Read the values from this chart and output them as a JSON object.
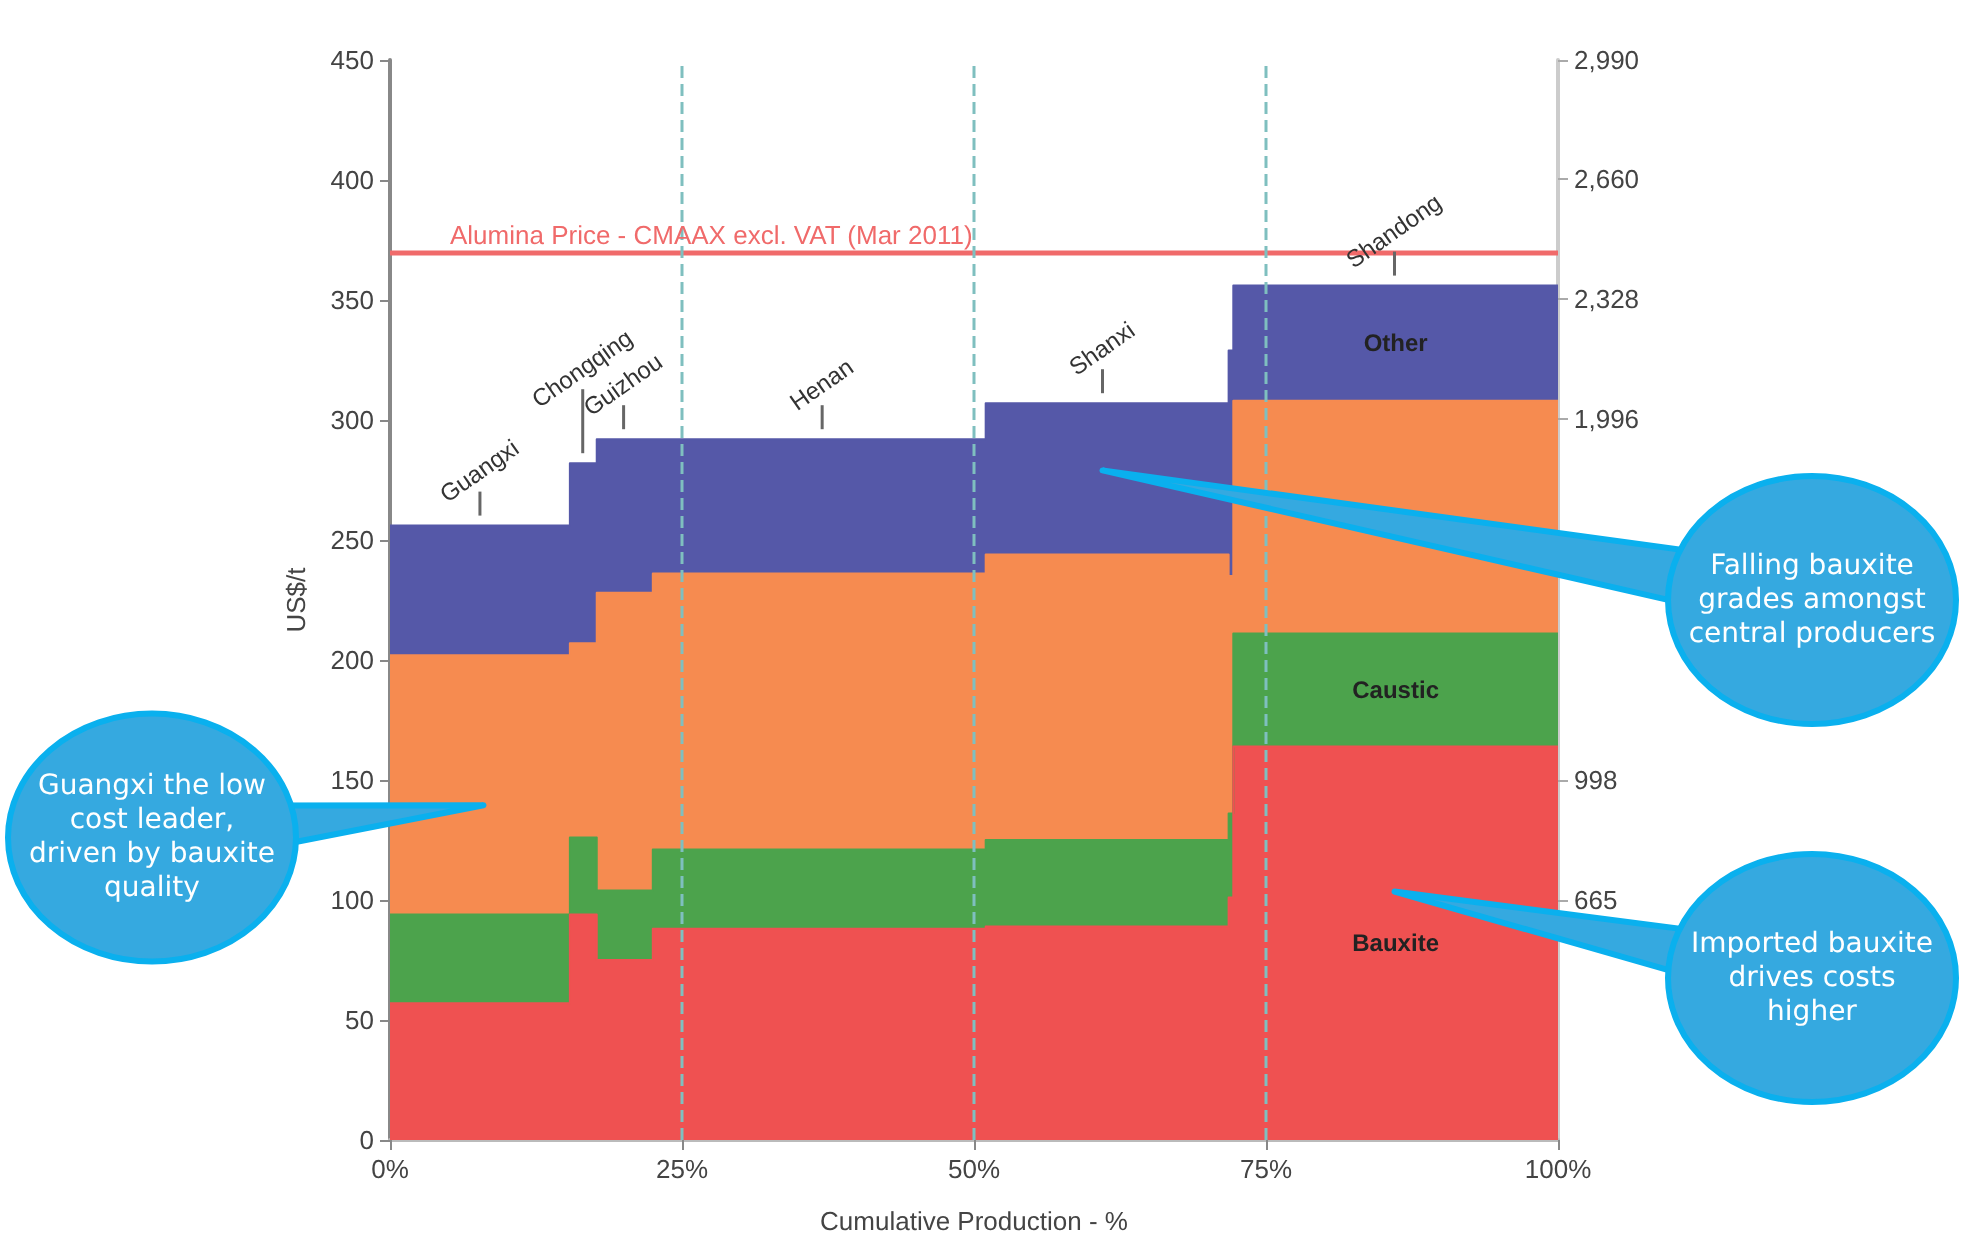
{
  "chart_data": {
    "type": "area",
    "stacked": true,
    "xlabel": "Cumulative Production - %",
    "ylabel": "US$/t",
    "x": [
      0,
      15.4,
      15.4,
      17.7,
      17.7,
      22.5,
      22.5,
      51.0,
      51.0,
      71.8,
      71.8,
      72.2,
      72.2,
      100
    ],
    "series": [
      {
        "name": "Bauxite",
        "color": "#ef5151",
        "values": [
          57,
          57,
          94,
          94,
          75,
          75,
          88,
          88,
          89,
          89,
          101,
          101,
          164,
          164
        ]
      },
      {
        "name": "Caustic",
        "color": "#4ca34c",
        "values": [
          37,
          37,
          32,
          32,
          29,
          29,
          33,
          33,
          36,
          36,
          35,
          35,
          47,
          47
        ]
      },
      {
        "color": "#f68b50",
        "values": [
          108,
          108,
          81,
          81,
          124,
          124,
          115,
          115,
          119,
          119,
          99,
          99,
          97,
          97
        ]
      },
      {
        "name": "Other",
        "color": "#5558a8",
        "values": [
          54,
          54,
          75,
          75,
          64,
          64,
          56,
          56,
          63,
          63,
          94,
          94,
          48,
          48
        ]
      }
    ],
    "xlim": [
      0,
      100
    ],
    "xticks": [
      {
        "value": 0,
        "label": "0%"
      },
      {
        "value": 25,
        "label": "25%"
      },
      {
        "value": 50,
        "label": "50%"
      },
      {
        "value": 75,
        "label": "75%"
      },
      {
        "value": 100,
        "label": "100%"
      }
    ],
    "ylim": [
      0,
      450
    ],
    "yticks": [
      0,
      50,
      100,
      150,
      200,
      250,
      300,
      350,
      400,
      450
    ],
    "y2lim": [
      0,
      2990
    ],
    "y2ticks": [
      {
        "value": 665,
        "label": "665"
      },
      {
        "value": 998,
        "label": "998"
      },
      {
        "value": 1996,
        "label": "1,996"
      },
      {
        "value": 2328,
        "label": "2,328"
      },
      {
        "value": 2660,
        "label": "2,660"
      },
      {
        "value": 2990,
        "label": "2,990"
      }
    ],
    "ref_lines": [
      {
        "axis": "y",
        "value": 370,
        "label": "Alumina Price - CMAAX excl. VAT (Mar 2011)",
        "color": "#f06a6a",
        "line_style": "solid"
      },
      {
        "axis": "x",
        "value": 25,
        "color": "#7fbfbf",
        "line_style": "dashed"
      },
      {
        "axis": "x",
        "value": 50,
        "color": "#7fbfbf",
        "line_style": "dashed"
      },
      {
        "axis": "x",
        "value": 75,
        "color": "#7fbfbf",
        "line_style": "dashed"
      }
    ],
    "annotations": [
      {
        "text": "Guangxi",
        "x": 7.7,
        "y": 256
      },
      {
        "text": "Chongqing",
        "x": 16.5,
        "y": 282
      },
      {
        "text": "Guizhou",
        "x": 20,
        "y": 292
      },
      {
        "text": "Henan",
        "x": 37,
        "y": 292
      },
      {
        "text": "Shanxi",
        "x": 61,
        "y": 307
      },
      {
        "text": "Shandong",
        "x": 86,
        "y": 356
      },
      "Guangxi the low cost leader, driven by bauxite quality",
      "Falling bauxite grades amongst central producers",
      "Imported bauxite drives costs higher"
    ],
    "grid": false,
    "legend": false,
    "marker": "none",
    "line_style": "solid"
  }
}
